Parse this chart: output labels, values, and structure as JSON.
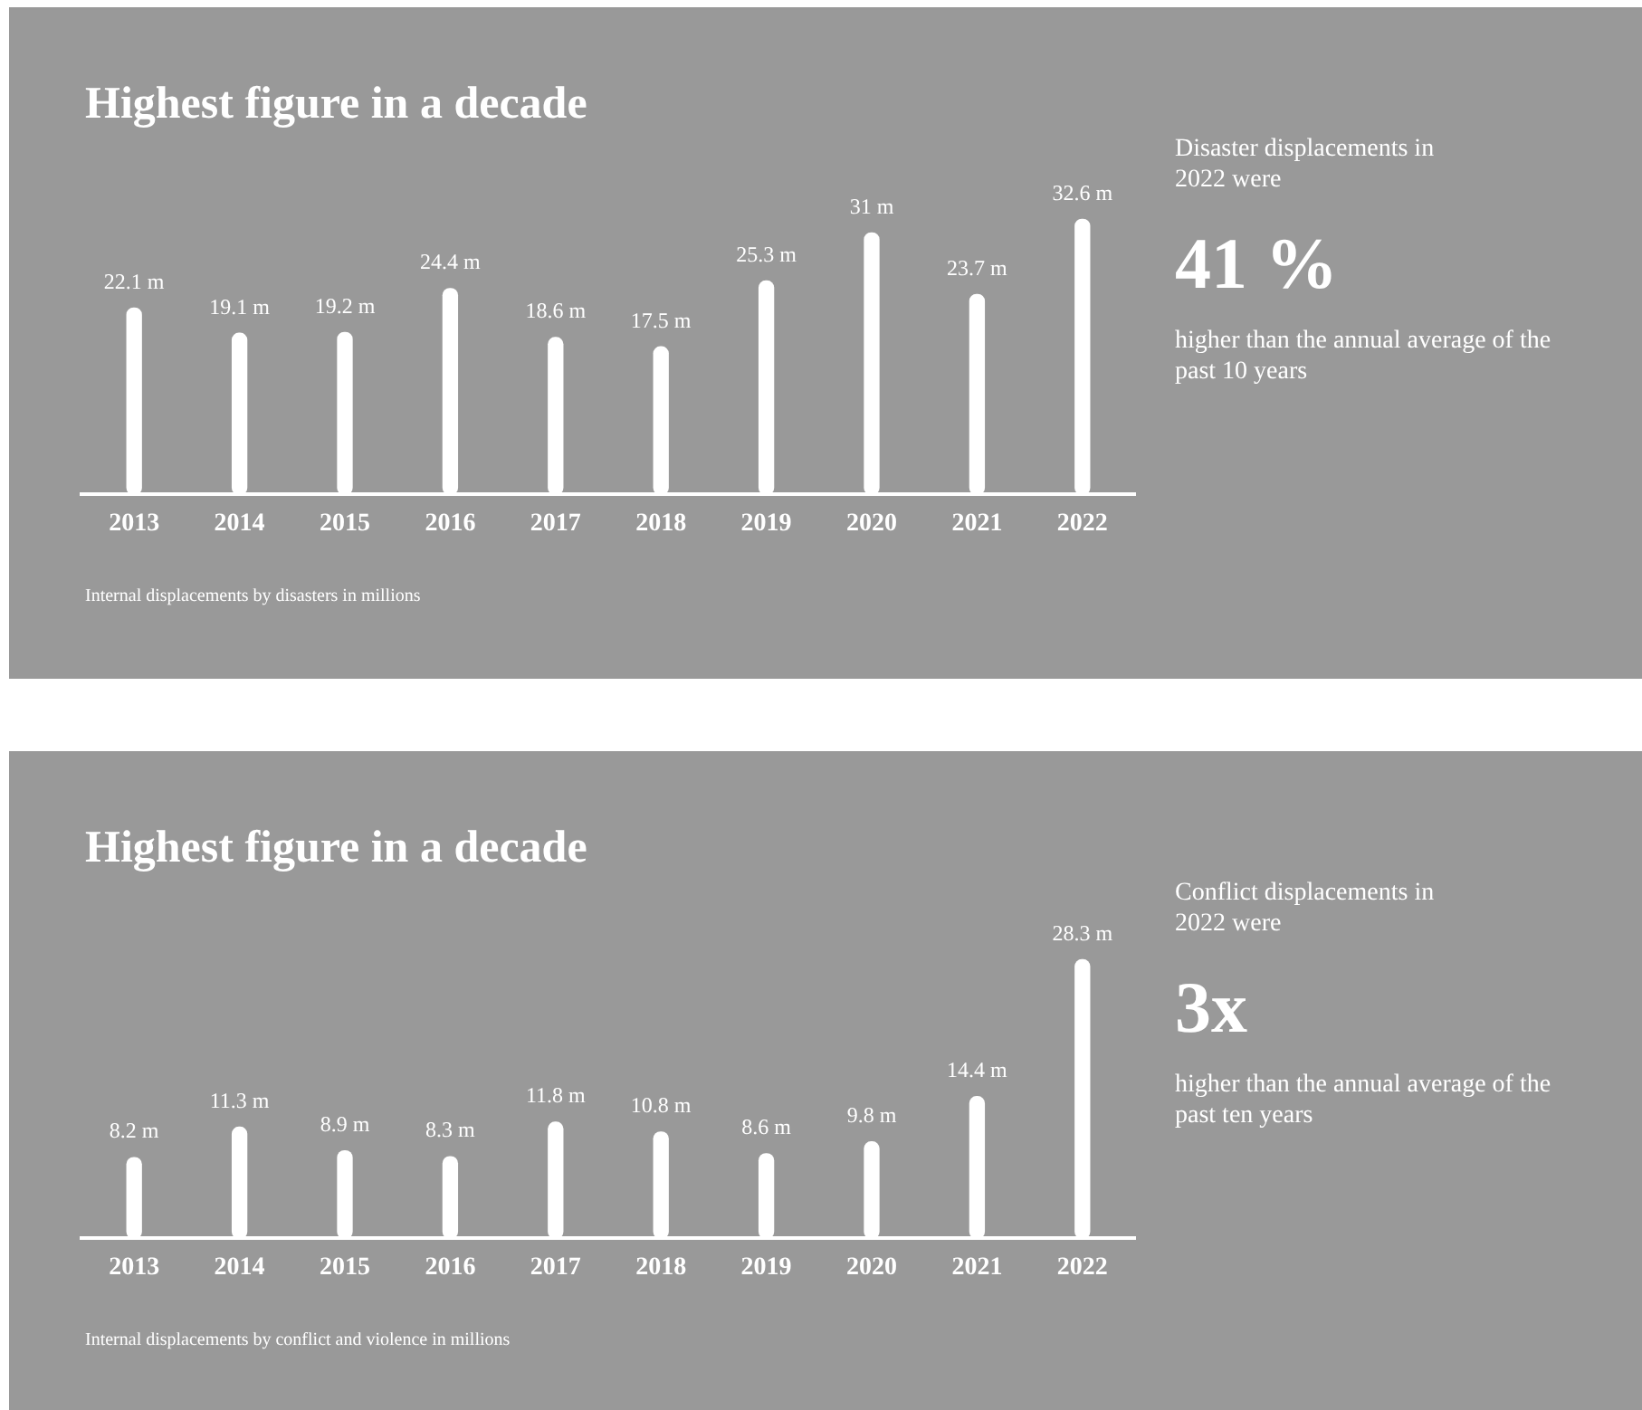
{
  "chart_data": [
    {
      "type": "bar",
      "title": "Highest figure in a decade",
      "categories": [
        "2013",
        "2014",
        "2015",
        "2016",
        "2017",
        "2018",
        "2019",
        "2020",
        "2021",
        "2022"
      ],
      "values": [
        22.1,
        19.1,
        19.2,
        24.4,
        18.6,
        17.5,
        25.3,
        31,
        23.7,
        32.6
      ],
      "value_labels": [
        "22.1 m",
        "19.1 m",
        "19.2 m",
        "24.4 m",
        "18.6 m",
        "17.5 m",
        "25.3 m",
        "31 m",
        "23.7 m",
        "32.6 m"
      ],
      "color": "#ffffff",
      "tick_labels": "x",
      "grid": false,
      "legend": false,
      "annotations": [
        "Disaster displacements in 2022 were",
        "41 %",
        "higher than the annual average of the past 10 years",
        "Internal displacements by disasters in millions"
      ]
    },
    {
      "type": "bar",
      "title": "Highest figure in a decade",
      "categories": [
        "2013",
        "2014",
        "2015",
        "2016",
        "2017",
        "2018",
        "2019",
        "2020",
        "2021",
        "2022"
      ],
      "values": [
        8.2,
        11.3,
        8.9,
        8.3,
        11.8,
        10.8,
        8.6,
        9.8,
        14.4,
        28.3
      ],
      "value_labels": [
        "8.2 m",
        "11.3 m",
        "8.9 m",
        "8.3 m",
        "11.8 m",
        "10.8 m",
        "8.6 m",
        "9.8 m",
        "14.4 m",
        "28.3 m"
      ],
      "color": "#ffffff",
      "tick_labels": "x",
      "grid": false,
      "legend": false,
      "annotations": [
        "Conflict displacements in 2022 were",
        "3x",
        "higher than the annual average of the past ten years",
        "Internal displacements by conflict and violence in millions"
      ]
    }
  ]
}
